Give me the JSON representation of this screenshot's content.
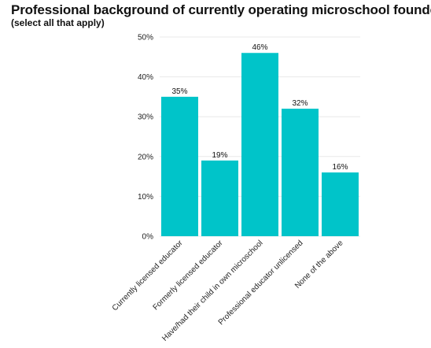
{
  "chart_data": {
    "type": "bar",
    "title": "Professional background of currently operating microschool founders",
    "subtitle": "(select all that apply)",
    "categories": [
      "Currently licensed educator",
      "Formerly licensed educator",
      "Have/had their child in own microschool",
      "Professional educator unlicensed",
      "None of the above"
    ],
    "values": [
      35,
      19,
      46,
      32,
      16
    ],
    "data_labels": [
      "35%",
      "19%",
      "46%",
      "32%",
      "16%"
    ],
    "y_ticks": [
      0,
      10,
      20,
      30,
      40,
      50
    ],
    "y_tick_labels": [
      "0%",
      "10%",
      "20%",
      "30%",
      "40%",
      "50%"
    ],
    "ylim": [
      0,
      50
    ],
    "grid": true,
    "legend": "none",
    "bar_color": "#00C4C9",
    "grid_color": "#e8e8e8"
  }
}
